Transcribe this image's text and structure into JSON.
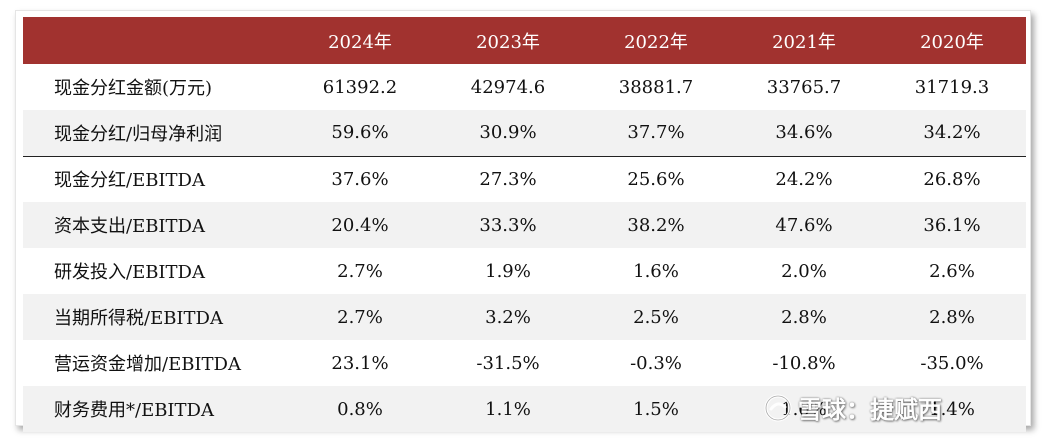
{
  "table": {
    "header": [
      "",
      "2024年",
      "2023年",
      "2022年",
      "2021年",
      "2020年"
    ],
    "rows": [
      {
        "label": "现金分红金额(万元)",
        "values": [
          "61392.2",
          "42974.6",
          "38881.7",
          "33765.7",
          "31719.3"
        ]
      },
      {
        "label": "现金分红/归母净利润",
        "values": [
          "59.6%",
          "30.9%",
          "37.7%",
          "34.6%",
          "34.2%"
        ]
      },
      {
        "label": "现金分红/EBITDA",
        "values": [
          "37.6%",
          "27.3%",
          "25.6%",
          "24.2%",
          "26.8%"
        ]
      },
      {
        "label": "资本支出/EBITDA",
        "values": [
          "20.4%",
          "33.3%",
          "38.2%",
          "47.6%",
          "36.1%"
        ]
      },
      {
        "label": "研发投入/EBITDA",
        "values": [
          "2.7%",
          "1.9%",
          "1.6%",
          "2.0%",
          "2.6%"
        ]
      },
      {
        "label": "当期所得税/EBITDA",
        "values": [
          "2.7%",
          "3.2%",
          "2.5%",
          "2.8%",
          "2.8%"
        ]
      },
      {
        "label": "营运资金增加/EBITDA",
        "values": [
          "23.1%",
          "-31.5%",
          "-0.3%",
          "-10.8%",
          "-35.0%"
        ]
      },
      {
        "label": "财务费用*/EBITDA",
        "values": [
          "0.8%",
          "1.1%",
          "1.5%",
          "1.6%",
          "1.4%"
        ]
      }
    ]
  },
  "watermark": {
    "icon": "snowball-logo-icon",
    "text": "雪球：捷赋西"
  },
  "colors": {
    "header_bg": "#a1322f",
    "alt_row_bg": "#f2f2f2"
  }
}
